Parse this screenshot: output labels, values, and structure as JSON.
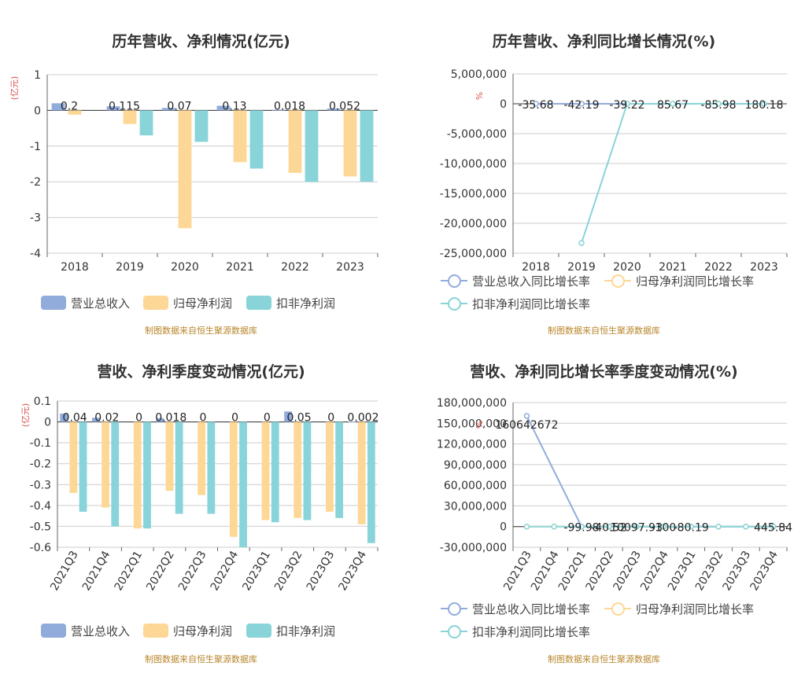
{
  "credit": "制图数据来自恒生聚源数据库",
  "colors": {
    "revenue": "#91acdb",
    "parent_net": "#fdd796",
    "deducted_net": "#88d4d8",
    "unit": "#d9534f"
  },
  "legend_bar": [
    "营业总收入",
    "归母净利润",
    "扣非净利润"
  ],
  "legend_line": [
    "营业总收入同比增长率",
    "归母净利润同比增长率",
    "扣非净利润同比增长率"
  ],
  "chart_data": [
    {
      "type": "bar",
      "title": "历年营收、净利情况(亿元)",
      "ylabel": "(亿元)",
      "categories": [
        "2018",
        "2019",
        "2020",
        "2021",
        "2022",
        "2023"
      ],
      "ylim": [
        -4,
        1
      ],
      "yticks": [
        1,
        0,
        -1,
        -2,
        -3,
        -4
      ],
      "series": [
        {
          "name": "营业总收入",
          "values": [
            0.2,
            0.115,
            0.07,
            0.13,
            0.018,
            0.052
          ],
          "labels": [
            "0.2",
            "0.115",
            "0.07",
            "0.13",
            "0.018",
            "0.052"
          ]
        },
        {
          "name": "归母净利润",
          "values": [
            -0.12,
            -0.38,
            -3.3,
            -1.45,
            -1.75,
            -1.85
          ]
        },
        {
          "name": "扣非净利润",
          "values": [
            0,
            -0.7,
            -0.88,
            -1.63,
            -2.0,
            -2.0
          ]
        }
      ]
    },
    {
      "type": "line",
      "title": "历年营收、净利同比增长情况(%)",
      "ylabel": "%",
      "categories": [
        "2018",
        "2019",
        "2020",
        "2021",
        "2022",
        "2023"
      ],
      "ylim": [
        -25000000,
        5000000
      ],
      "yticks": [
        "5,000,000",
        "0",
        "-5,000,000",
        "-10,000,000",
        "-15,000,000",
        "-20,000,000",
        "-25,000,000"
      ],
      "tick_values": [
        5000000,
        0,
        -5000000,
        -10000000,
        -15000000,
        -20000000,
        -25000000
      ],
      "point_labels": [
        "-35.68",
        "-42.19",
        "-39.22",
        "85.67",
        "-85.98",
        "180.18"
      ],
      "series": [
        {
          "name": "营业总收入同比增长率",
          "values": [
            -35.68,
            -42.19,
            -39.22,
            85.67,
            -85.98,
            180.18
          ]
        },
        {
          "name": "归母净利润同比增长率",
          "values": [
            null,
            -5,
            2,
            1,
            -3,
            4
          ]
        },
        {
          "name": "扣非净利润同比增长率",
          "values": [
            null,
            -23300000,
            -120,
            10,
            -20,
            5
          ]
        }
      ]
    },
    {
      "type": "bar",
      "title": "营收、净利季度变动情况(亿元)",
      "ylabel": "(亿元)",
      "categories": [
        "2021Q3",
        "2021Q4",
        "2022Q1",
        "2022Q2",
        "2022Q3",
        "2022Q4",
        "2023Q1",
        "2023Q2",
        "2023Q3",
        "2023Q4"
      ],
      "ylim": [
        -0.6,
        0.1
      ],
      "yticks": [
        "0.1",
        "0",
        "-0.1",
        "-0.2",
        "-0.3",
        "-0.4",
        "-0.5",
        "-0.6"
      ],
      "tick_values": [
        0.1,
        0,
        -0.1,
        -0.2,
        -0.3,
        -0.4,
        -0.5,
        -0.6
      ],
      "series": [
        {
          "name": "营业总收入",
          "values": [
            0.04,
            0.02,
            0,
            0.018,
            0,
            0,
            0,
            0.05,
            0,
            0.002
          ],
          "labels": [
            "0.04",
            "0.02",
            "0",
            "0.018",
            "0",
            "0",
            "0",
            "0.05",
            "0",
            "0.002"
          ]
        },
        {
          "name": "归母净利润",
          "values": [
            -0.34,
            -0.41,
            -0.51,
            -0.33,
            -0.35,
            -0.55,
            -0.47,
            -0.46,
            -0.43,
            -0.49
          ]
        },
        {
          "name": "扣非净利润",
          "values": [
            -0.43,
            -0.5,
            -0.51,
            -0.44,
            -0.44,
            -0.6,
            -0.48,
            -0.47,
            -0.46,
            -0.58
          ]
        }
      ]
    },
    {
      "type": "line",
      "title": "营收、净利同比增长率季度变动情况(%)",
      "ylabel": "%",
      "categories": [
        "2021Q3",
        "2021Q4",
        "2022Q1",
        "2022Q2",
        "2022Q3",
        "2022Q4",
        "2023Q1",
        "2023Q2",
        "2023Q3",
        "2023Q4"
      ],
      "ylim": [
        -30000000,
        180000000
      ],
      "yticks": [
        "180,000,000",
        "150,000,000",
        "120,000,000",
        "90,000,000",
        "60,000,000",
        "30,000,000",
        "0",
        "-30,000,000"
      ],
      "tick_values": [
        180000000,
        150000000,
        120000000,
        90000000,
        60000000,
        30000000,
        0,
        -30000000
      ],
      "point_labels": [
        "160642672",
        "",
        "-99.98",
        "-40.52",
        "10097.93",
        "-100",
        "-80.19",
        "",
        "",
        "445.84"
      ],
      "series": [
        {
          "name": "营业总收入同比增长率",
          "values": [
            160642672,
            null,
            -99.98,
            -40.52,
            10097.93,
            -100,
            -80.19,
            null,
            null,
            445.84
          ]
        },
        {
          "name": "归母净利润同比增长率",
          "values": [
            -20,
            -30,
            10,
            -15,
            5,
            -25,
            20,
            10,
            -5,
            15
          ]
        },
        {
          "name": "扣非净利润同比增长率",
          "values": [
            -30,
            -40,
            15,
            -20,
            8,
            -30,
            25,
            12,
            -8,
            18
          ]
        }
      ]
    }
  ]
}
